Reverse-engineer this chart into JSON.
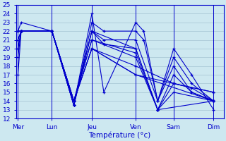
{
  "title": "Température (°c)",
  "bg_color": "#cde8f0",
  "line_color": "#0000cc",
  "grid_color": "#99bbcc",
  "xtick_labels": [
    "Mer",
    "Lun",
    "Jeu",
    "Ven",
    "Sam",
    "Dim"
  ],
  "ylim": [
    12,
    25
  ],
  "yticks": [
    12,
    13,
    14,
    15,
    16,
    17,
    18,
    19,
    20,
    21,
    22,
    23,
    24,
    25
  ],
  "xlim": [
    -0.05,
    5.15
  ],
  "xtick_positions": [
    0.0,
    0.85,
    1.85,
    2.95,
    3.9,
    4.9
  ],
  "series": [
    {
      "x": [
        0.0,
        0.08,
        0.85,
        1.4,
        1.85,
        2.15,
        2.95,
        3.15,
        3.5,
        3.9,
        4.35,
        4.9
      ],
      "y": [
        19,
        22,
        22,
        13.5,
        24,
        15,
        23,
        22,
        14,
        20,
        17,
        13
      ]
    },
    {
      "x": [
        0.0,
        0.08,
        0.85,
        1.4,
        1.85,
        2.15,
        2.95,
        3.15,
        3.5,
        3.9,
        4.35,
        4.9
      ],
      "y": [
        22,
        23,
        22,
        13.5,
        23,
        22,
        22,
        21,
        14,
        19,
        16,
        14
      ]
    },
    {
      "x": [
        0.0,
        0.08,
        0.85,
        1.4,
        1.85,
        2.15,
        2.95,
        3.5,
        3.9,
        4.35,
        4.9
      ],
      "y": [
        21,
        22,
        22,
        13.5,
        22,
        21,
        21,
        14,
        18,
        15,
        14
      ]
    },
    {
      "x": [
        0.0,
        0.08,
        0.85,
        1.4,
        1.85,
        2.15,
        2.95,
        3.5,
        3.9,
        4.35,
        4.9
      ],
      "y": [
        22,
        22,
        22,
        13.5,
        22,
        20.5,
        20,
        13,
        17,
        15,
        14
      ]
    },
    {
      "x": [
        0.0,
        0.08,
        0.85,
        1.4,
        1.85,
        2.95,
        3.5,
        3.9,
        4.35,
        4.9
      ],
      "y": [
        20,
        22,
        22,
        14,
        22,
        20,
        13,
        16,
        15.5,
        14
      ]
    },
    {
      "x": [
        0.0,
        0.08,
        0.85,
        1.4,
        1.85,
        2.95,
        3.5,
        3.9,
        4.9
      ],
      "y": [
        22,
        22,
        22,
        14,
        21,
        19.5,
        13,
        15,
        14
      ]
    },
    {
      "x": [
        0.0,
        0.08,
        0.85,
        1.4,
        1.85,
        2.95,
        3.5,
        4.9
      ],
      "y": [
        17,
        22,
        22,
        14,
        21,
        19,
        13,
        14
      ]
    },
    {
      "x": [
        0.0,
        0.08,
        0.85,
        1.4,
        1.85,
        2.95,
        3.9,
        4.9
      ],
      "y": [
        22,
        22,
        22,
        14,
        20,
        18,
        16,
        15
      ]
    },
    {
      "x": [
        0.0,
        0.08,
        0.85,
        1.4,
        1.85,
        2.95,
        3.9,
        4.9
      ],
      "y": [
        21,
        22,
        22,
        14,
        20,
        17,
        16,
        15
      ]
    },
    {
      "x": [
        0.0,
        0.08,
        0.85,
        1.4,
        1.85,
        2.95,
        4.9
      ],
      "y": [
        20,
        22,
        22,
        14,
        20,
        17,
        14
      ]
    }
  ]
}
